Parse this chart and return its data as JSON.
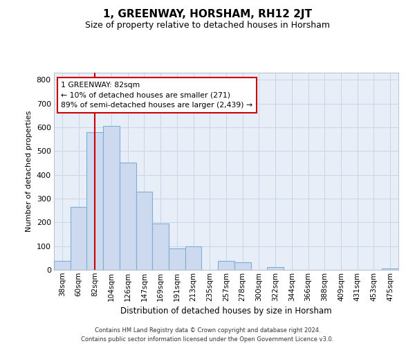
{
  "title": "1, GREENWAY, HORSHAM, RH12 2JT",
  "subtitle": "Size of property relative to detached houses in Horsham",
  "xlabel": "Distribution of detached houses by size in Horsham",
  "ylabel": "Number of detached properties",
  "categories": [
    "38sqm",
    "60sqm",
    "82sqm",
    "104sqm",
    "126sqm",
    "147sqm",
    "169sqm",
    "191sqm",
    "213sqm",
    "235sqm",
    "257sqm",
    "278sqm",
    "300sqm",
    "322sqm",
    "344sqm",
    "366sqm",
    "388sqm",
    "409sqm",
    "431sqm",
    "453sqm",
    "475sqm"
  ],
  "values": [
    38,
    265,
    580,
    605,
    450,
    330,
    195,
    90,
    100,
    0,
    38,
    32,
    0,
    12,
    0,
    0,
    0,
    0,
    0,
    0,
    5
  ],
  "bar_color": "#ccd9ee",
  "bar_edge_color": "#7bafd4",
  "vline_index": 2,
  "vline_color": "#cc0000",
  "annotation_text": "1 GREENWAY: 82sqm\n← 10% of detached houses are smaller (271)\n89% of semi-detached houses are larger (2,439) →",
  "annotation_box_facecolor": "#ffffff",
  "annotation_box_edgecolor": "#cc0000",
  "ylim": [
    0,
    830
  ],
  "yticks": [
    0,
    100,
    200,
    300,
    400,
    500,
    600,
    700,
    800
  ],
  "grid_color": "#c8d4e8",
  "background_color": "#e8eef8",
  "footer": "Contains HM Land Registry data © Crown copyright and database right 2024.\nContains public sector information licensed under the Open Government Licence v3.0."
}
